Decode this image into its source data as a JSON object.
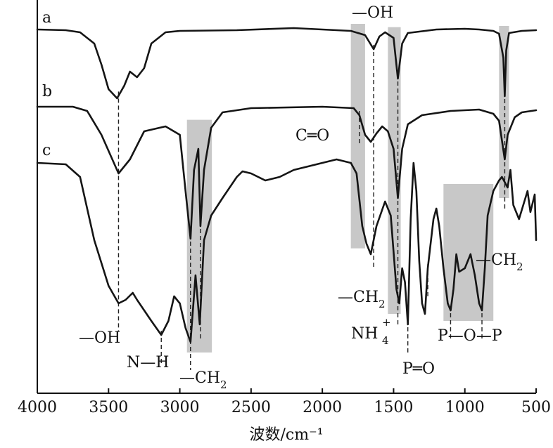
{
  "chart_data": {
    "type": "line",
    "title": "",
    "xlabel": "波数/cm⁻¹",
    "ylabel": "",
    "x_axis": {
      "range": [
        4000,
        500
      ],
      "reversed": true,
      "ticks": [
        4000,
        3500,
        3000,
        2500,
        2000,
        1500,
        1000,
        500
      ],
      "tick_labels": [
        "4000",
        "3500",
        "3000",
        "2500",
        "2000",
        "1500",
        "1000",
        "500"
      ]
    },
    "y_axis": {
      "ticks_shown": false,
      "label_shown": false
    },
    "grid": false,
    "series": [
      {
        "name": "a",
        "baseline": 0,
        "points": [
          [
            4000,
            0
          ],
          [
            3800,
            -1
          ],
          [
            3700,
            -4
          ],
          [
            3600,
            -20
          ],
          [
            3550,
            -50
          ],
          [
            3500,
            -85
          ],
          [
            3440,
            -98
          ],
          [
            3390,
            -80
          ],
          [
            3350,
            -60
          ],
          [
            3300,
            -68
          ],
          [
            3250,
            -55
          ],
          [
            3200,
            -20
          ],
          [
            3100,
            -4
          ],
          [
            3000,
            -2
          ],
          [
            2600,
            -1
          ],
          [
            2200,
            2
          ],
          [
            2000,
            0
          ],
          [
            1800,
            -2
          ],
          [
            1700,
            -8
          ],
          [
            1640,
            -28
          ],
          [
            1600,
            -10
          ],
          [
            1560,
            -4
          ],
          [
            1500,
            -12
          ],
          [
            1470,
            -70
          ],
          [
            1440,
            -20
          ],
          [
            1400,
            -5
          ],
          [
            1200,
            0
          ],
          [
            1000,
            1
          ],
          [
            900,
            0
          ],
          [
            800,
            -2
          ],
          [
            760,
            -6
          ],
          [
            730,
            -40
          ],
          [
            720,
            -95
          ],
          [
            710,
            -30
          ],
          [
            690,
            -5
          ],
          [
            600,
            -2
          ],
          [
            500,
            -1
          ]
        ]
      },
      {
        "name": "b",
        "baseline": 0,
        "points": [
          [
            4000,
            0
          ],
          [
            3750,
            0
          ],
          [
            3650,
            -6
          ],
          [
            3550,
            -40
          ],
          [
            3430,
            -95
          ],
          [
            3350,
            -75
          ],
          [
            3250,
            -35
          ],
          [
            3100,
            -28
          ],
          [
            3000,
            -40
          ],
          [
            2960,
            -120
          ],
          [
            2925,
            -188
          ],
          [
            2900,
            -90
          ],
          [
            2870,
            -60
          ],
          [
            2855,
            -170
          ],
          [
            2830,
            -90
          ],
          [
            2780,
            -30
          ],
          [
            2700,
            -8
          ],
          [
            2500,
            -2
          ],
          [
            2000,
            0
          ],
          [
            1780,
            -2
          ],
          [
            1740,
            -12
          ],
          [
            1700,
            -40
          ],
          [
            1660,
            -50
          ],
          [
            1620,
            -38
          ],
          [
            1580,
            -28
          ],
          [
            1540,
            -35
          ],
          [
            1500,
            -60
          ],
          [
            1470,
            -130
          ],
          [
            1440,
            -60
          ],
          [
            1400,
            -25
          ],
          [
            1300,
            -12
          ],
          [
            1100,
            -6
          ],
          [
            900,
            -4
          ],
          [
            800,
            -10
          ],
          [
            760,
            -20
          ],
          [
            720,
            -75
          ],
          [
            700,
            -40
          ],
          [
            650,
            -15
          ],
          [
            600,
            -8
          ],
          [
            500,
            -5
          ]
        ]
      },
      {
        "name": "c",
        "baseline": 0,
        "points": [
          [
            4000,
            0
          ],
          [
            3800,
            -2
          ],
          [
            3700,
            -20
          ],
          [
            3600,
            -110
          ],
          [
            3500,
            -175
          ],
          [
            3430,
            -200
          ],
          [
            3380,
            -195
          ],
          [
            3330,
            -185
          ],
          [
            3300,
            -195
          ],
          [
            3200,
            -225
          ],
          [
            3130,
            -245
          ],
          [
            3080,
            -225
          ],
          [
            3040,
            -190
          ],
          [
            3000,
            -200
          ],
          [
            2960,
            -235
          ],
          [
            2925,
            -255
          ],
          [
            2890,
            -160
          ],
          [
            2860,
            -230
          ],
          [
            2830,
            -110
          ],
          [
            2780,
            -75
          ],
          [
            2700,
            -50
          ],
          [
            2600,
            -20
          ],
          [
            2560,
            -12
          ],
          [
            2500,
            -15
          ],
          [
            2400,
            -25
          ],
          [
            2300,
            -20
          ],
          [
            2200,
            -10
          ],
          [
            2100,
            -5
          ],
          [
            2000,
            0
          ],
          [
            1900,
            5
          ],
          [
            1800,
            0
          ],
          [
            1760,
            -15
          ],
          [
            1720,
            -90
          ],
          [
            1690,
            -115
          ],
          [
            1660,
            -130
          ],
          [
            1620,
            -90
          ],
          [
            1560,
            -55
          ],
          [
            1520,
            -75
          ],
          [
            1480,
            -180
          ],
          [
            1460,
            -200
          ],
          [
            1440,
            -150
          ],
          [
            1420,
            -170
          ],
          [
            1400,
            -230
          ],
          [
            1380,
            -80
          ],
          [
            1360,
            0
          ],
          [
            1340,
            -40
          ],
          [
            1320,
            -140
          ],
          [
            1300,
            -200
          ],
          [
            1280,
            -215
          ],
          [
            1260,
            -150
          ],
          [
            1220,
            -80
          ],
          [
            1200,
            -65
          ],
          [
            1180,
            -90
          ],
          [
            1150,
            -150
          ],
          [
            1120,
            -200
          ],
          [
            1100,
            -210
          ],
          [
            1080,
            -180
          ],
          [
            1060,
            -130
          ],
          [
            1040,
            -155
          ],
          [
            1000,
            -150
          ],
          [
            960,
            -130
          ],
          [
            930,
            -160
          ],
          [
            900,
            -200
          ],
          [
            880,
            -210
          ],
          [
            860,
            -150
          ],
          [
            840,
            -75
          ],
          [
            800,
            -40
          ],
          [
            760,
            -25
          ],
          [
            740,
            -20
          ],
          [
            700,
            -35
          ],
          [
            680,
            -10
          ],
          [
            660,
            -60
          ],
          [
            620,
            -80
          ],
          [
            560,
            -40
          ],
          [
            540,
            -70
          ],
          [
            510,
            -45
          ],
          [
            500,
            -110
          ]
        ]
      }
    ],
    "curve_labels": [
      "a",
      "b",
      "c"
    ],
    "shaded_bands": [
      {
        "from": 2950,
        "to": 2775,
        "covers": [
          "b",
          "c"
        ]
      },
      {
        "from": 1800,
        "to": 1700,
        "covers": [
          "a",
          "b",
          "c"
        ]
      },
      {
        "from": 1540,
        "to": 1450,
        "covers": [
          "a",
          "b",
          "c"
        ]
      },
      {
        "from": 1150,
        "to": 800,
        "covers": [
          "c"
        ]
      },
      {
        "from": 760,
        "to": 690,
        "covers": [
          "a",
          "b",
          "c"
        ]
      }
    ],
    "reference_lines": [
      {
        "x": 3430,
        "from_series": "a",
        "to_series": "c"
      },
      {
        "x": 3130,
        "from_series": "c",
        "to_series": "c"
      },
      {
        "x": 2925,
        "from_series": "b",
        "to_series": "c"
      },
      {
        "x": 2855,
        "from_series": "b",
        "to_series": "c"
      },
      {
        "x": 1740,
        "from_series": "b",
        "to_series": "b"
      },
      {
        "x": 1640,
        "from_series": "a",
        "to_series": "c"
      },
      {
        "x": 1470,
        "from_series": "a",
        "to_series": "c"
      },
      {
        "x": 1400,
        "from_series": "c",
        "to_series": "c"
      },
      {
        "x": 1260,
        "from_series": "c",
        "to_series": "c"
      },
      {
        "x": 1100,
        "from_series": "c",
        "to_series": "c"
      },
      {
        "x": 880,
        "from_series": "c",
        "to_series": "c"
      },
      {
        "x": 720,
        "from_series": "a",
        "to_series": "c"
      }
    ],
    "annotations": [
      {
        "id": "oh-top",
        "text": "—OH"
      },
      {
        "id": "co",
        "text": "C═O"
      },
      {
        "id": "ch2-mid",
        "text": "—CH",
        "sub": "2"
      },
      {
        "id": "ch2-right",
        "text": "—CH",
        "sub": "2"
      },
      {
        "id": "nh4",
        "text": "NH",
        "sub": "4",
        "sup": "+"
      },
      {
        "id": "po",
        "text": "P═O"
      },
      {
        "id": "pop",
        "text": "P—O—P"
      },
      {
        "id": "oh-left",
        "text": "—OH"
      },
      {
        "id": "nh",
        "text": "N—H"
      },
      {
        "id": "ch2-bottom",
        "text": "—CH",
        "sub": "2"
      }
    ]
  }
}
